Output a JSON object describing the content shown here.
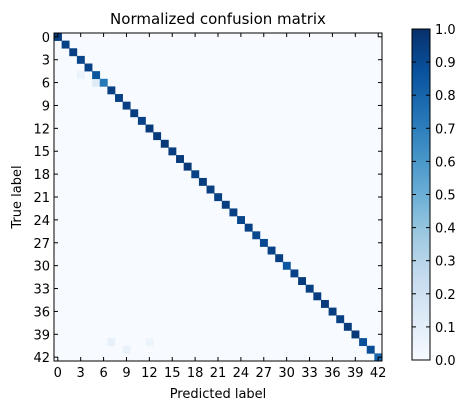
{
  "chart_data": {
    "type": "heatmap",
    "title": "Normalized confusion matrix",
    "xlabel": "Predicted label",
    "ylabel": "True label",
    "n_classes": 43,
    "x_ticks": [
      0,
      3,
      6,
      9,
      12,
      15,
      18,
      21,
      24,
      27,
      30,
      33,
      36,
      39,
      42
    ],
    "y_ticks": [
      0,
      3,
      6,
      9,
      12,
      15,
      18,
      21,
      24,
      27,
      30,
      33,
      36,
      39,
      42
    ],
    "diagonal": [
      0.95,
      0.93,
      0.94,
      0.92,
      0.93,
      0.86,
      0.72,
      0.94,
      0.93,
      0.94,
      0.95,
      0.93,
      0.96,
      0.96,
      0.97,
      0.95,
      0.96,
      0.97,
      0.93,
      0.95,
      0.94,
      0.93,
      0.95,
      0.94,
      0.92,
      0.93,
      0.91,
      0.9,
      0.93,
      0.94,
      0.85,
      0.93,
      0.96,
      0.94,
      0.95,
      0.96,
      0.95,
      0.94,
      0.96,
      0.97,
      0.88,
      0.89,
      0.8
    ],
    "off_diagonal": [
      {
        "row": 5,
        "col": 3,
        "value": 0.06
      },
      {
        "row": 6,
        "col": 5,
        "value": 0.12
      },
      {
        "row": 40,
        "col": 7,
        "value": 0.08
      },
      {
        "row": 41,
        "col": 9,
        "value": 0.07
      },
      {
        "row": 40,
        "col": 12,
        "value": 0.05
      }
    ],
    "colorbar": {
      "range": [
        0.0,
        1.0
      ],
      "ticks": [
        "0.0",
        "0.1",
        "0.2",
        "0.3",
        "0.4",
        "0.5",
        "0.6",
        "0.7",
        "0.8",
        "0.9",
        "1.0"
      ]
    },
    "colormap": "Blues"
  }
}
